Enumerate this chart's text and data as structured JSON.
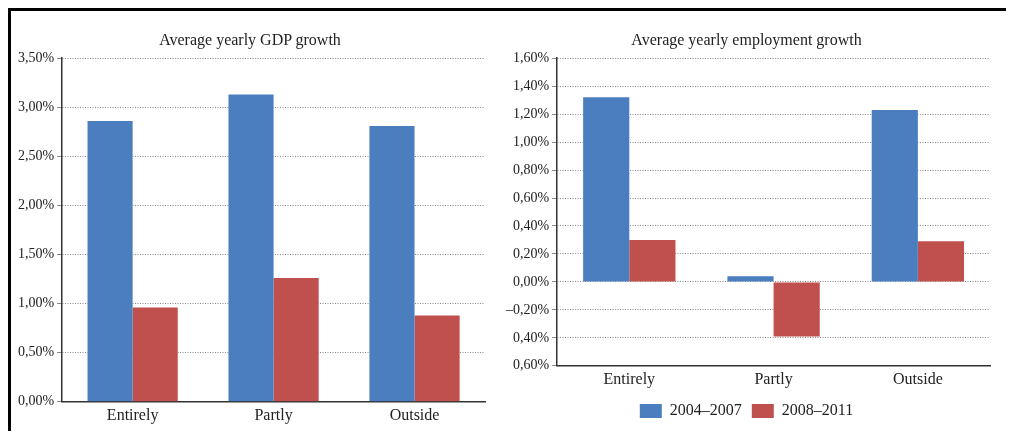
{
  "chart_data": [
    {
      "type": "bar",
      "title": "Average yearly GDP growth",
      "categories": [
        "Entirely",
        "Partly",
        "Outside"
      ],
      "series": [
        {
          "color": "#4a7ebf",
          "values": [
            2.86,
            3.13,
            2.81
          ]
        },
        {
          "color": "#c0504d",
          "values": [
            0.96,
            1.26,
            0.88
          ]
        }
      ],
      "ylim": [
        0,
        3.5
      ],
      "yticks": [
        {
          "value": 0,
          "label": "0,00%"
        },
        {
          "value": 0.5,
          "label": "0,50%"
        },
        {
          "value": 1,
          "label": "1,00%"
        },
        {
          "value": 1.5,
          "label": "1,50%"
        },
        {
          "value": 2,
          "label": "2,00%"
        },
        {
          "value": 2.5,
          "label": "2,50%"
        },
        {
          "value": 3,
          "label": "3,00%"
        },
        {
          "value": 3.5,
          "label": "3,50%"
        }
      ],
      "grid": "y",
      "legend": false
    },
    {
      "type": "bar",
      "title": "Average yearly employment growth",
      "categories": [
        "Entirely",
        "Partly",
        "Outside"
      ],
      "series": [
        {
          "name": "2004–2007",
          "color": "#4a7ebf",
          "values": [
            1.32,
            0.04,
            1.23
          ]
        },
        {
          "name": "2008–2011",
          "color": "#c0504d",
          "values": [
            0.3,
            -0.39,
            0.29
          ]
        }
      ],
      "ylim": [
        -0.6,
        1.6
      ],
      "yticks": [
        {
          "value": -0.6,
          "label": "0,60%"
        },
        {
          "value": -0.4,
          "label": "0,40%"
        },
        {
          "value": -0.2,
          "label": "–0,20%"
        },
        {
          "value": 0,
          "label": "0,00%"
        },
        {
          "value": 0.2,
          "label": "0,20%"
        },
        {
          "value": 0.4,
          "label": "0,40%"
        },
        {
          "value": 0.6,
          "label": "0,60%"
        },
        {
          "value": 0.8,
          "label": "0,80%"
        },
        {
          "value": 1,
          "label": "1,00%"
        },
        {
          "value": 1.2,
          "label": "1,20%"
        },
        {
          "value": 1.4,
          "label": "1,40%"
        },
        {
          "value": 1.6,
          "label": "1,60%"
        }
      ],
      "grid": "y",
      "legend": "bottom"
    }
  ]
}
